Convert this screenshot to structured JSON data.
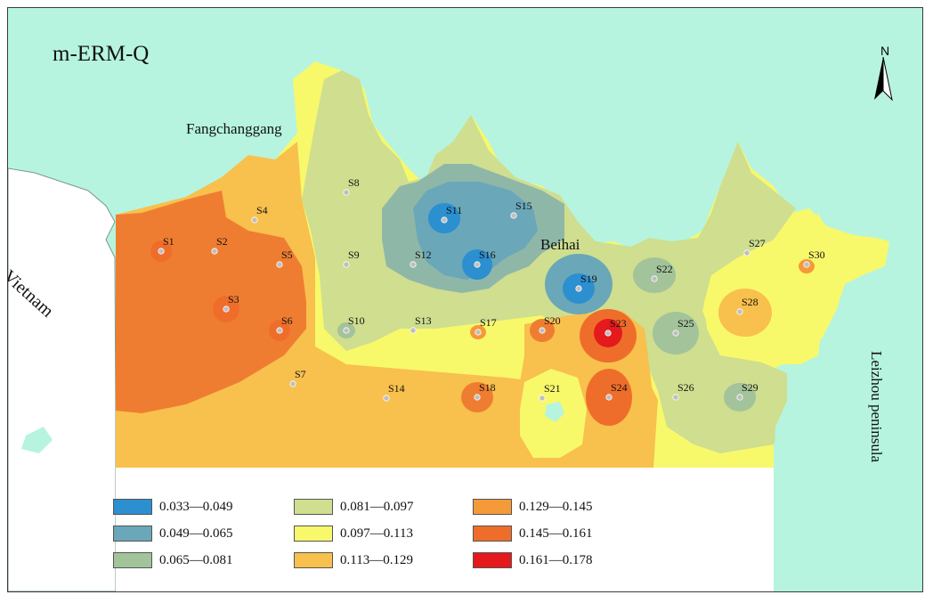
{
  "map": {
    "title": "m-ERM-Q",
    "places": [
      {
        "id": "fangchenggang",
        "label": "Fangchanggang"
      },
      {
        "id": "beihai",
        "label": "Beihai"
      },
      {
        "id": "vietnam",
        "label": "Vietnam"
      },
      {
        "id": "leizhou",
        "label": "Leizhou peninsula"
      }
    ],
    "north_arrow": {
      "label": "N"
    },
    "colors": {
      "sea": "#b6f4df",
      "land": "#ffffff",
      "outline": "#7a9a8c",
      "station_dot": "#bfbfbf"
    },
    "legend": [
      {
        "range": "0.033—0.049",
        "color": "#2b8fd0"
      },
      {
        "range": "0.049—0.065",
        "color": "#6aa7b8"
      },
      {
        "range": "0.065—0.081",
        "color": "#a3c39b"
      },
      {
        "range": "0.081—0.097",
        "color": "#cfde8f"
      },
      {
        "range": "0.097—0.113",
        "color": "#f8f86b"
      },
      {
        "range": "0.113—0.129",
        "color": "#f8c04d"
      },
      {
        "range": "0.129—0.145",
        "color": "#f59a38"
      },
      {
        "range": "0.145—0.161",
        "color": "#ef6d2b"
      },
      {
        "range": "0.161—0.178",
        "color": "#e41a1c"
      }
    ],
    "stations": [
      {
        "id": "S1",
        "label": "S1"
      },
      {
        "id": "S2",
        "label": "S2"
      },
      {
        "id": "S3",
        "label": "S3"
      },
      {
        "id": "S4",
        "label": "S4"
      },
      {
        "id": "S5",
        "label": "S5"
      },
      {
        "id": "S6",
        "label": "S6"
      },
      {
        "id": "S7",
        "label": "S7"
      },
      {
        "id": "S8",
        "label": "S8"
      },
      {
        "id": "S9",
        "label": "S9"
      },
      {
        "id": "S10",
        "label": "S10"
      },
      {
        "id": "S11",
        "label": "S11"
      },
      {
        "id": "S12",
        "label": "S12"
      },
      {
        "id": "S13",
        "label": "S13"
      },
      {
        "id": "S14",
        "label": "S14"
      },
      {
        "id": "S15",
        "label": "S15"
      },
      {
        "id": "S16",
        "label": "S16"
      },
      {
        "id": "S17",
        "label": "S17"
      },
      {
        "id": "S18",
        "label": "S18"
      },
      {
        "id": "S19",
        "label": "S19"
      },
      {
        "id": "S20",
        "label": "S20"
      },
      {
        "id": "S21",
        "label": "S21"
      },
      {
        "id": "S22",
        "label": "S22"
      },
      {
        "id": "S23",
        "label": "S23"
      },
      {
        "id": "S24",
        "label": "S24"
      },
      {
        "id": "S25",
        "label": "S25"
      },
      {
        "id": "S26",
        "label": "S26"
      },
      {
        "id": "S27",
        "label": "S27"
      },
      {
        "id": "S28",
        "label": "S28"
      },
      {
        "id": "S29",
        "label": "S29"
      },
      {
        "id": "S30",
        "label": "S30"
      }
    ]
  }
}
